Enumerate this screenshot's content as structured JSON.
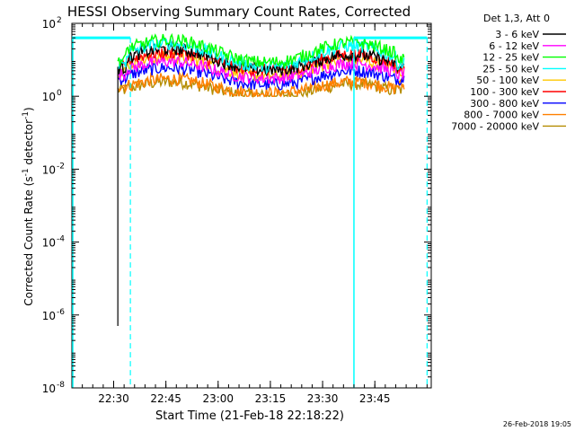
{
  "chart_data": {
    "type": "line",
    "title": "HESSI Observing Summary Count Rates, Corrected",
    "xlabel": "Start Time (21-Feb-18 22:18:22)",
    "ylabel": "Corrected Count Rate (s-1 detector-1)",
    "ylabel_parts": {
      "pre": "Corrected Count Rate (s",
      "sup1": "-1",
      "mid": " detector",
      "sup2": "-1",
      "post": ")"
    },
    "y_scale": "log",
    "ylim": [
      1e-08,
      100
    ],
    "xlim_minutes": [
      22.3,
      24.02
    ],
    "x_ticks": [
      {
        "label": "22:30",
        "min": 22.5
      },
      {
        "label": "22:45",
        "min": 22.75
      },
      {
        "label": "23:00",
        "min": 23.0
      },
      {
        "label": "23:15",
        "min": 23.25
      },
      {
        "label": "23:30",
        "min": 23.5
      },
      {
        "label": "23:45",
        "min": 23.75
      }
    ],
    "y_ticks": [
      {
        "base": "10",
        "exp": "2",
        "value": 100
      },
      {
        "base": "10",
        "exp": "0",
        "value": 1
      },
      {
        "base": "10",
        "exp": "-2",
        "value": 0.01
      },
      {
        "base": "10",
        "exp": "-4",
        "value": 0.0001
      },
      {
        "base": "10",
        "exp": "-6",
        "value": 1e-06
      },
      {
        "base": "10",
        "exp": "-8",
        "value": 1e-08
      }
    ],
    "legend_title": "Det 1,3, Att 0",
    "legend_position": "right",
    "series": [
      {
        "name": "3 - 6 keV",
        "color": "#000000",
        "peak1": 20,
        "trough": 5,
        "peak2": 14,
        "edge": 6
      },
      {
        "name": "6 - 12 keV",
        "color": "#ff00ff",
        "peak1": 9,
        "trough": 3,
        "peak2": 8,
        "edge": 4
      },
      {
        "name": "12 - 25 keV",
        "color": "#00ff00",
        "peak1": 35,
        "trough": 8,
        "peak2": 30,
        "edge": 10
      },
      {
        "name": "25 - 50 keV",
        "color": "#00ffff",
        "peak1": 28,
        "trough": 6,
        "peak2": 24,
        "edge": 8
      },
      {
        "name": "50 - 100 keV",
        "color": "#ffc800",
        "peak1": 12,
        "trough": 3.5,
        "peak2": 10,
        "edge": 5
      },
      {
        "name": "100 - 300 keV",
        "color": "#ff0000",
        "peak1": 16,
        "trough": 5,
        "peak2": 14,
        "edge": 6
      },
      {
        "name": "300 - 800 keV",
        "color": "#0000ff",
        "peak1": 6,
        "trough": 2,
        "peak2": 5,
        "edge": 3
      },
      {
        "name": "800 - 7000 keV",
        "color": "#ff8000",
        "peak1": 3,
        "trough": 1.2,
        "peak2": 2.5,
        "edge": 2
      },
      {
        "name": "7000 - 20000 keV",
        "color": "#b48c00",
        "peak1": 2.5,
        "trough": 1.0,
        "peak2": 2.2,
        "edge": 1.5
      }
    ],
    "data_start_min": 22.52,
    "data_end_min": 23.89,
    "black_drop_to": 5e-07,
    "orbit_level": 40,
    "saa_intervals": [
      {
        "start": 22.3,
        "end": 22.58
      },
      {
        "start": 23.65,
        "end": 24.0
      }
    ],
    "night_dashes": [
      22.58,
      24.0
    ],
    "night_solid": [
      23.65
    ]
  },
  "footer_timestamp": "26-Feb-2018 19:05"
}
